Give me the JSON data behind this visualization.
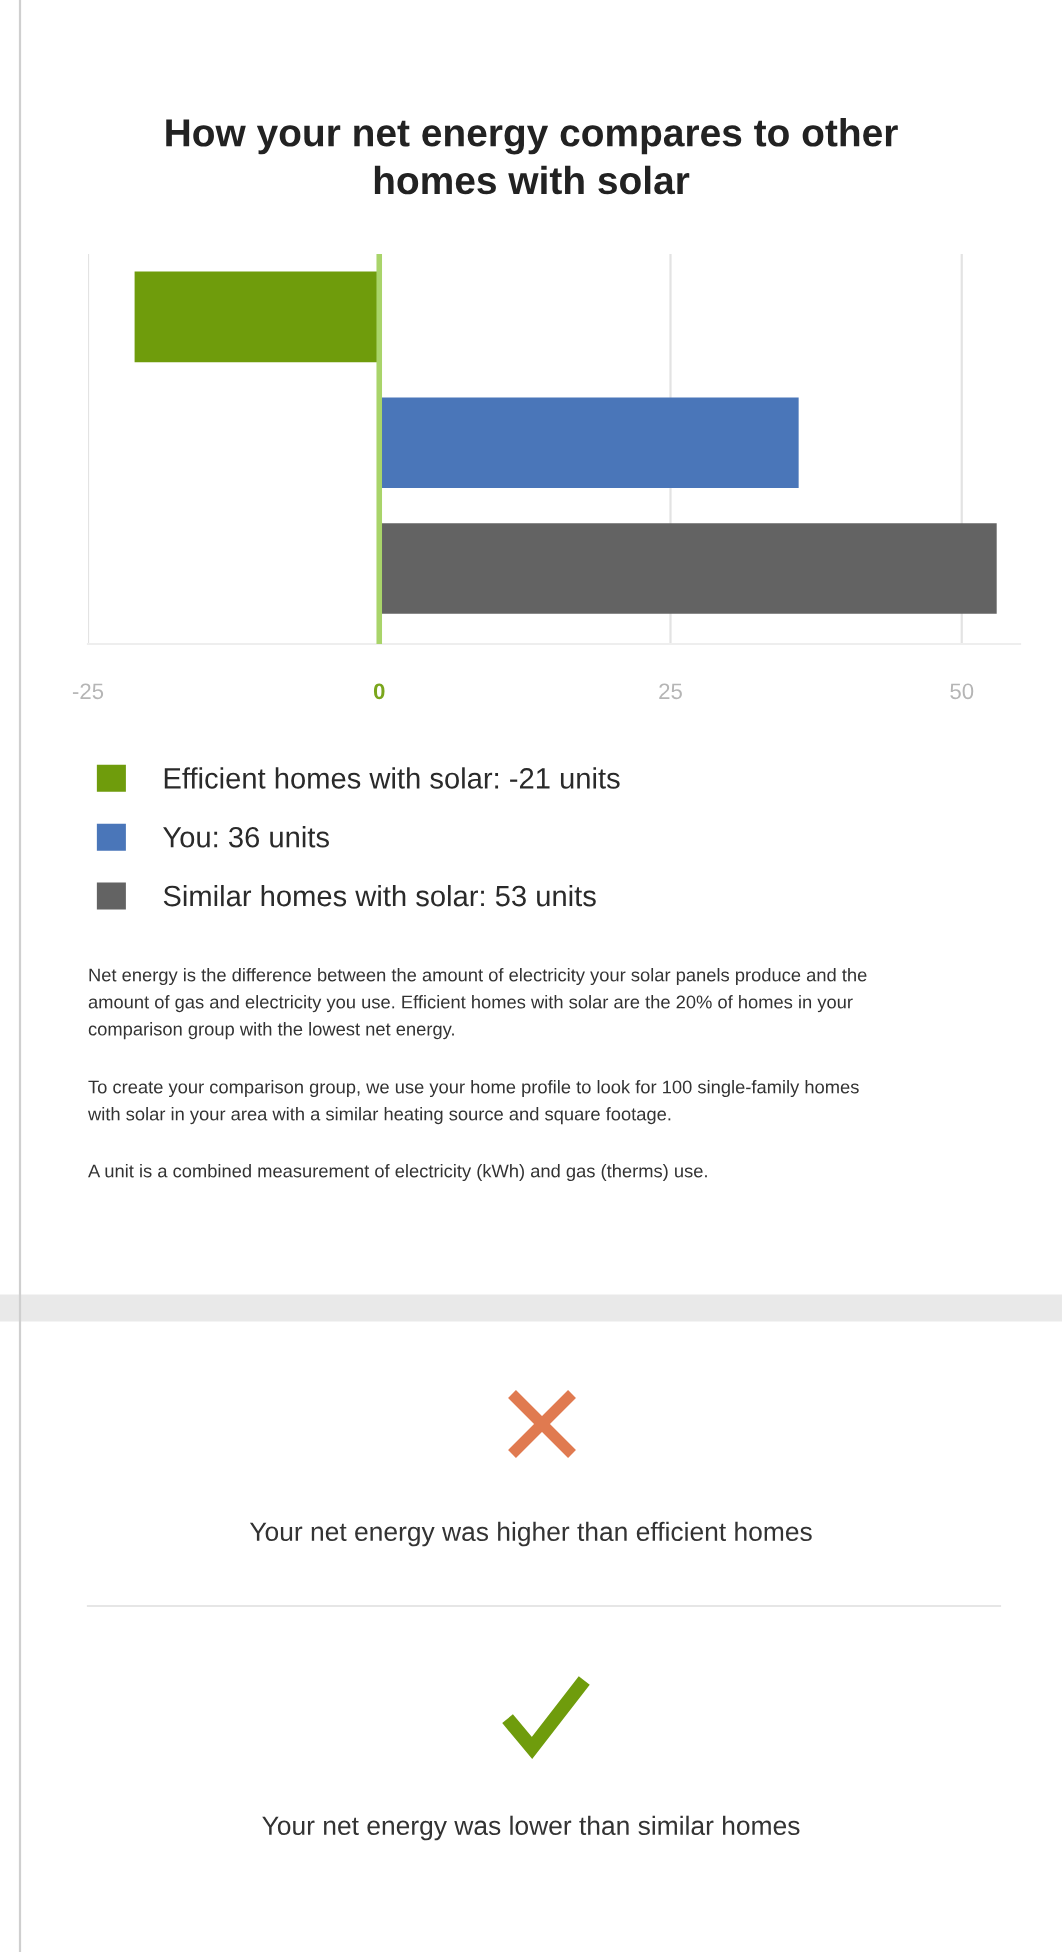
{
  "chart_data": {
    "type": "bar",
    "orientation": "horizontal",
    "title": "How your net energy compares to other\nhomes with solar",
    "categories": [
      null,
      null,
      null
    ],
    "series": [
      {
        "name": "Efficient homes with solar: -21 units",
        "color": "#6f9c0c",
        "values": [
          -21,
          null,
          null
        ]
      },
      {
        "name": "You: 36 units",
        "color": "#4a76b9",
        "values": [
          null,
          36,
          null
        ]
      },
      {
        "name": "Similar homes with solar: 53 units",
        "color": "#636363",
        "values": [
          null,
          null,
          53
        ]
      }
    ],
    "xlim": [
      -25,
      55
    ],
    "xticks": [
      -25,
      0,
      25,
      50
    ],
    "grid": "x",
    "legend": "bottom",
    "ref_lines": [
      {
        "axis": "x",
        "value": 0,
        "color": "#a9d46a"
      }
    ],
    "annotations": [
      "Net energy is the difference between the amount of electricity your solar panels produce and the\namount of gas and electricity you use. Efficient homes with solar are the 20% of homes in your\ncomparison group with the lowest net energy.",
      "To create your comparison group, we use your home profile to look for 100 single-family homes\nwith solar in your area with a similar heating source and square footage.",
      "A unit is a combined measurement of electricity (kWh) and gas (therms) use.",
      "Your net energy was higher than efficient homes",
      "Your net energy was lower than similar homes"
    ]
  }
}
